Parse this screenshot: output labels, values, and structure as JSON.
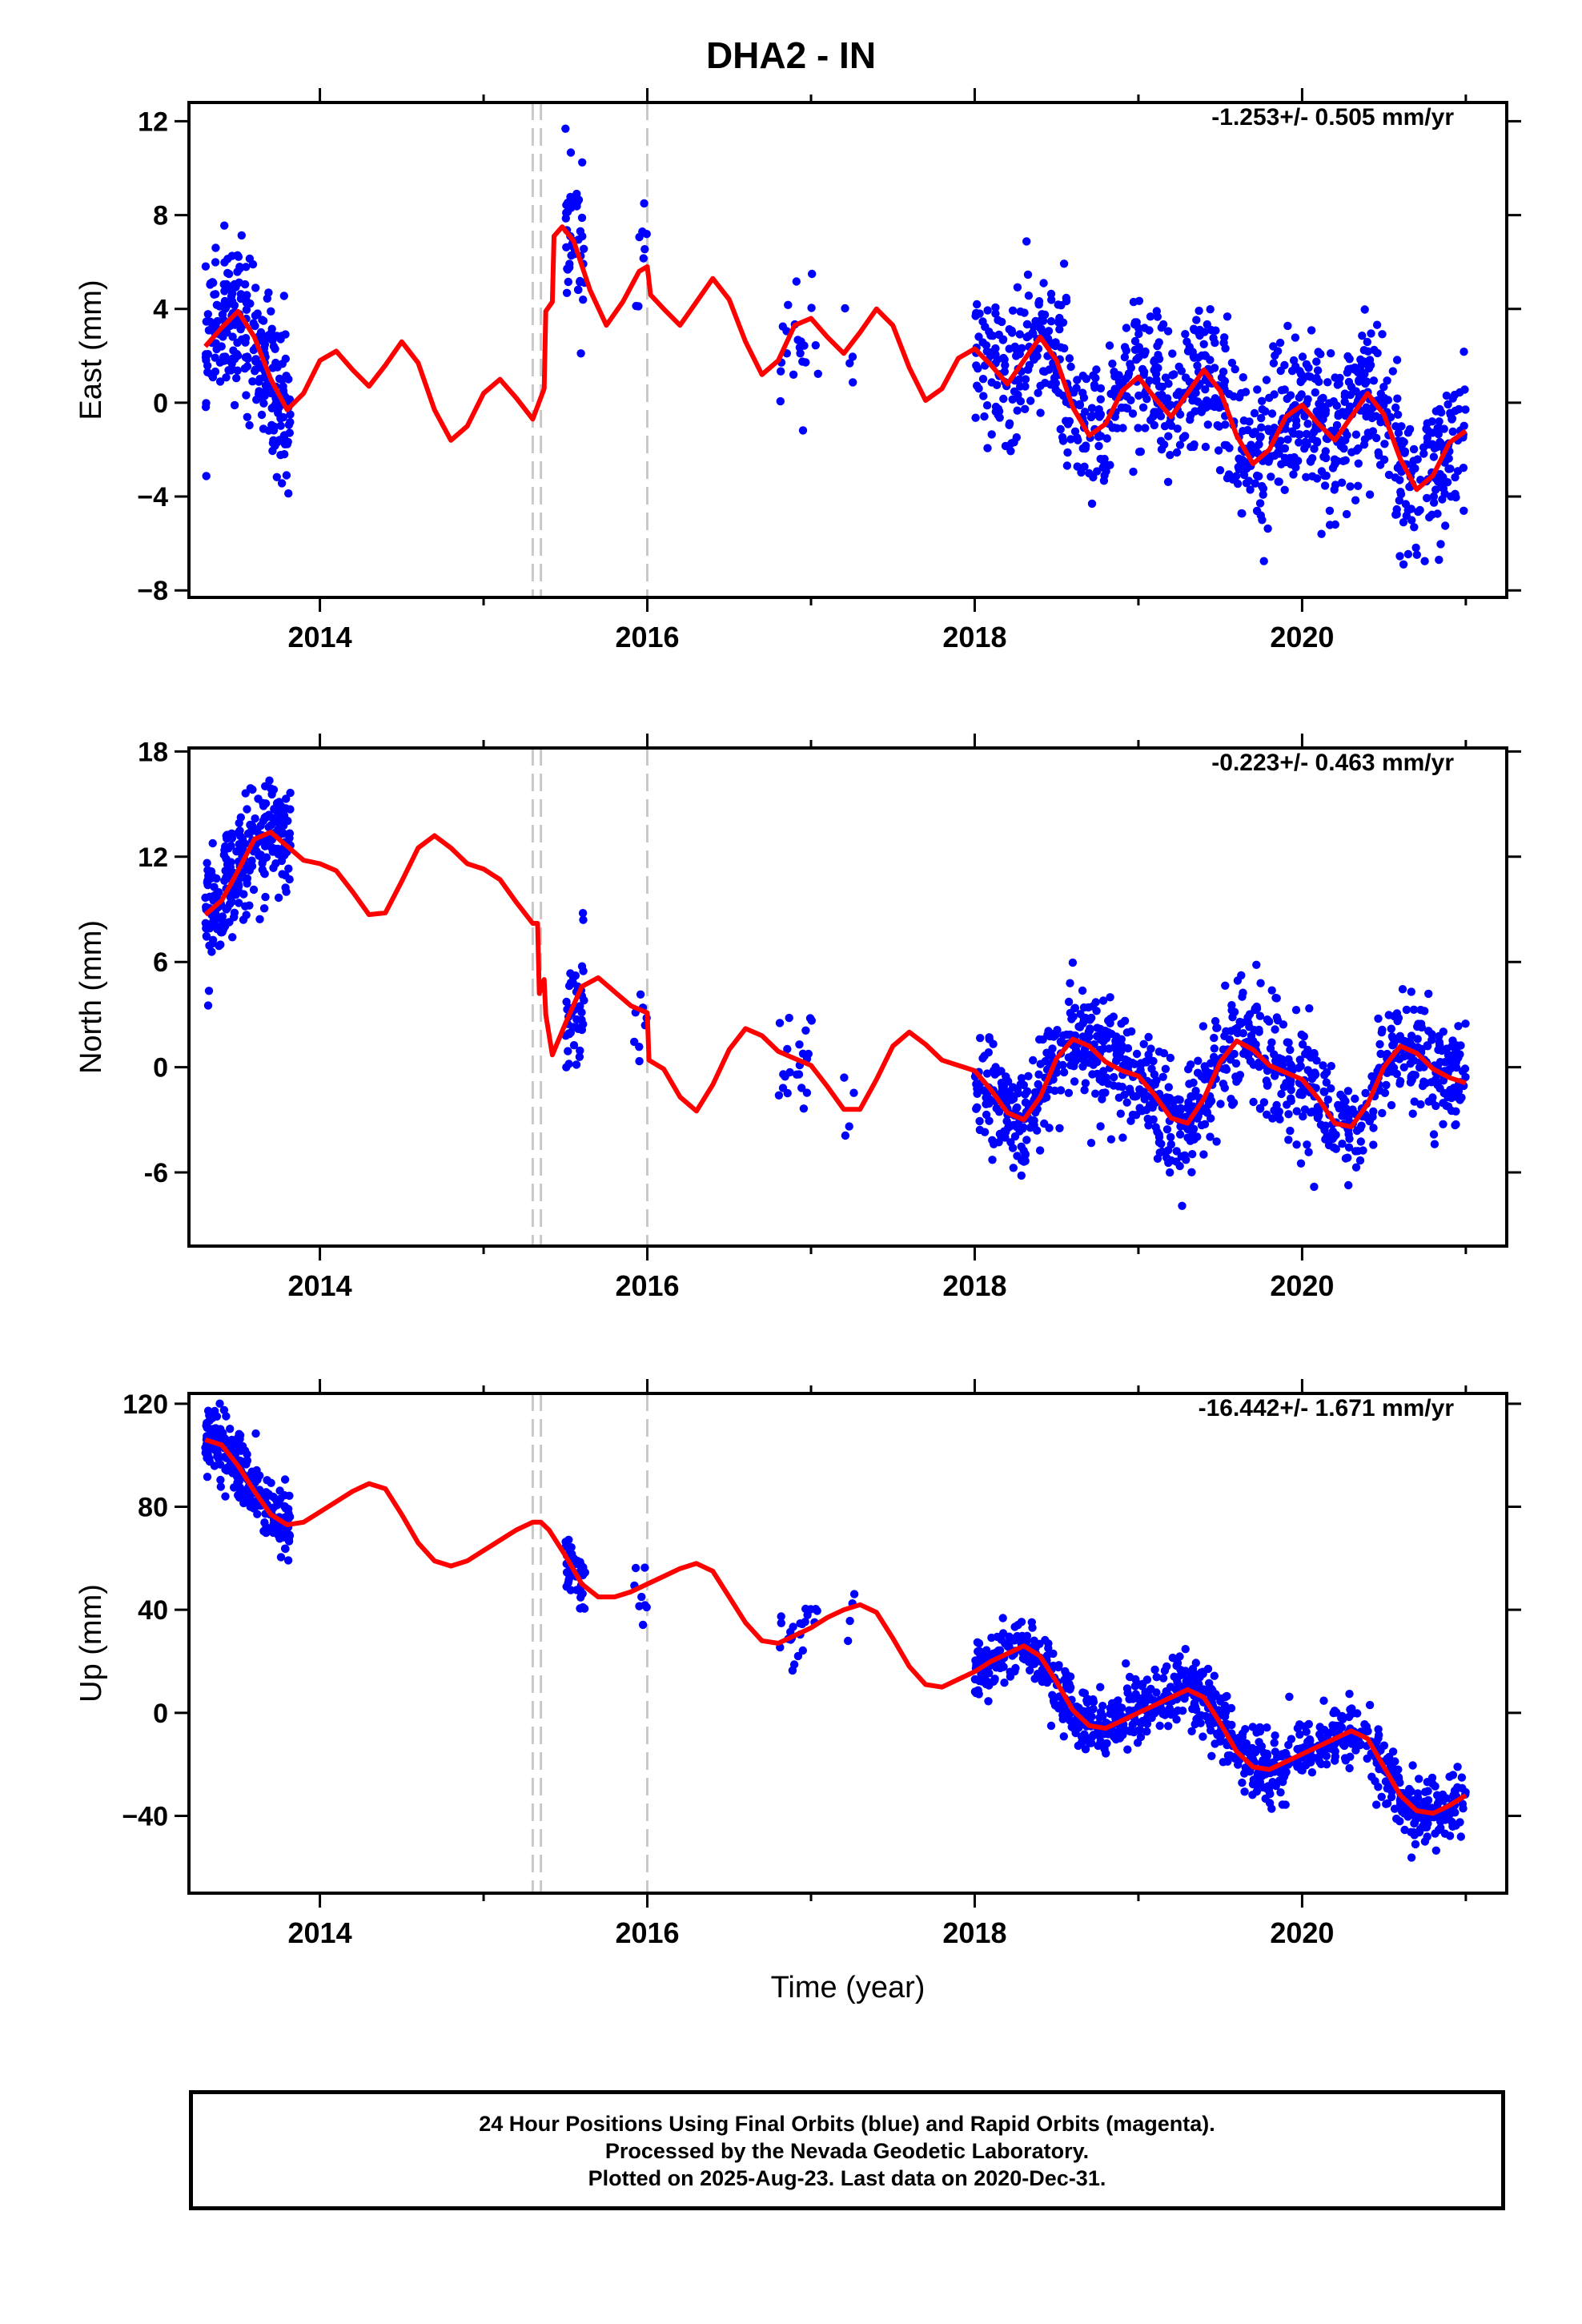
{
  "title": "DHA2 - IN",
  "footer": {
    "line1": "24 Hour Positions Using Final Orbits (blue) and Rapid Orbits (magenta).",
    "line2": "Processed by the Nevada Geodetic Laboratory.",
    "line3": "Plotted on 2025-Aug-23. Last data on 2020-Dec-31."
  },
  "colors": {
    "data": "#0000ff",
    "fit": "#ff0000",
    "breaks": "#c8c8c8"
  },
  "chart_data": [
    {
      "type": "scatter",
      "component": "east",
      "ylabel": "East (mm)",
      "xlabel": "",
      "rate_label": "-1.253+/- 0.505 mm/yr",
      "xlim": [
        2013.2,
        2021.25
      ],
      "ylim": [
        -8.3,
        12.8
      ],
      "yticks": [
        -8,
        -4,
        0,
        4,
        8,
        12
      ],
      "ytick_labels": [
        "−8",
        "−4",
        "0",
        "4",
        "8",
        "12"
      ],
      "xticks": [
        2014,
        2016,
        2018,
        2020
      ],
      "xtick_labels": [
        "2014",
        "2016",
        "2018",
        "2020"
      ],
      "breaks": [
        2015.3,
        2015.35,
        2016.0
      ],
      "fit_line": [
        [
          2013.3,
          2.4
        ],
        [
          2013.4,
          3.2
        ],
        [
          2013.5,
          3.9
        ],
        [
          2013.6,
          2.8
        ],
        [
          2013.7,
          1.0
        ],
        [
          2013.8,
          -0.3
        ],
        [
          2013.9,
          0.4
        ],
        [
          2014.0,
          1.8
        ],
        [
          2014.1,
          2.2
        ],
        [
          2014.2,
          1.4
        ],
        [
          2014.3,
          0.7
        ],
        [
          2014.4,
          1.6
        ],
        [
          2014.5,
          2.6
        ],
        [
          2014.6,
          1.7
        ],
        [
          2014.7,
          -0.3
        ],
        [
          2014.8,
          -1.6
        ],
        [
          2014.9,
          -1.0
        ],
        [
          2015.0,
          0.4
        ],
        [
          2015.1,
          1.0
        ],
        [
          2015.2,
          0.2
        ],
        [
          2015.3,
          -0.7
        ],
        [
          2015.37,
          0.6
        ],
        [
          2015.38,
          3.9
        ],
        [
          2015.42,
          4.3
        ],
        [
          2015.43,
          7.1
        ],
        [
          2015.48,
          7.5
        ],
        [
          2015.55,
          6.9
        ],
        [
          2015.65,
          4.8
        ],
        [
          2015.75,
          3.3
        ],
        [
          2015.85,
          4.3
        ],
        [
          2015.95,
          5.6
        ],
        [
          2016.0,
          5.8
        ],
        [
          2016.02,
          4.6
        ],
        [
          2016.1,
          4.0
        ],
        [
          2016.2,
          3.3
        ],
        [
          2016.3,
          4.3
        ],
        [
          2016.4,
          5.3
        ],
        [
          2016.5,
          4.4
        ],
        [
          2016.6,
          2.6
        ],
        [
          2016.7,
          1.2
        ],
        [
          2016.8,
          1.8
        ],
        [
          2016.9,
          3.3
        ],
        [
          2017.0,
          3.6
        ],
        [
          2017.1,
          2.8
        ],
        [
          2017.2,
          2.1
        ],
        [
          2017.3,
          3.0
        ],
        [
          2017.4,
          4.0
        ],
        [
          2017.5,
          3.3
        ],
        [
          2017.6,
          1.5
        ],
        [
          2017.7,
          0.1
        ],
        [
          2017.8,
          0.6
        ],
        [
          2017.9,
          1.9
        ],
        [
          2018.0,
          2.3
        ],
        [
          2018.1,
          1.6
        ],
        [
          2018.2,
          0.8
        ],
        [
          2018.3,
          1.8
        ],
        [
          2018.4,
          2.8
        ],
        [
          2018.5,
          1.8
        ],
        [
          2018.6,
          -0.2
        ],
        [
          2018.7,
          -1.4
        ],
        [
          2018.8,
          -0.9
        ],
        [
          2018.9,
          0.5
        ],
        [
          2019.0,
          1.1
        ],
        [
          2019.1,
          0.2
        ],
        [
          2019.2,
          -0.6
        ],
        [
          2019.3,
          0.4
        ],
        [
          2019.4,
          1.4
        ],
        [
          2019.5,
          0.5
        ],
        [
          2019.6,
          -1.4
        ],
        [
          2019.7,
          -2.6
        ],
        [
          2019.8,
          -2.0
        ],
        [
          2019.9,
          -0.6
        ],
        [
          2020.0,
          -0.1
        ],
        [
          2020.1,
          -0.9
        ],
        [
          2020.2,
          -1.6
        ],
        [
          2020.3,
          -0.6
        ],
        [
          2020.4,
          0.4
        ],
        [
          2020.5,
          -0.5
        ],
        [
          2020.6,
          -2.4
        ],
        [
          2020.7,
          -3.7
        ],
        [
          2020.8,
          -3.1
        ],
        [
          2020.9,
          -1.7
        ],
        [
          2021.0,
          -1.2
        ]
      ]
    },
    {
      "type": "scatter",
      "component": "north",
      "ylabel": "North (mm)",
      "xlabel": "",
      "rate_label": "-0.223+/- 0.463 mm/yr",
      "xlim": [
        2013.2,
        2021.25
      ],
      "ylim": [
        -10.2,
        18.2
      ],
      "yticks": [
        -6,
        0,
        6,
        12,
        18
      ],
      "ytick_labels": [
        "-6",
        "0",
        "6",
        "12",
        "18"
      ],
      "xticks": [
        2014,
        2016,
        2018,
        2020
      ],
      "xtick_labels": [
        "2014",
        "2016",
        "2018",
        "2020"
      ],
      "breaks": [
        2015.3,
        2015.35,
        2016.0
      ],
      "fit_line": [
        [
          2013.3,
          8.7
        ],
        [
          2013.4,
          9.5
        ],
        [
          2013.5,
          11.2
        ],
        [
          2013.6,
          13.0
        ],
        [
          2013.7,
          13.4
        ],
        [
          2013.8,
          12.6
        ],
        [
          2013.9,
          11.8
        ],
        [
          2014.0,
          11.6
        ],
        [
          2014.1,
          11.2
        ],
        [
          2014.2,
          10.0
        ],
        [
          2014.3,
          8.7
        ],
        [
          2014.4,
          8.8
        ],
        [
          2014.5,
          10.6
        ],
        [
          2014.6,
          12.5
        ],
        [
          2014.7,
          13.2
        ],
        [
          2014.8,
          12.5
        ],
        [
          2014.9,
          11.6
        ],
        [
          2015.0,
          11.3
        ],
        [
          2015.1,
          10.7
        ],
        [
          2015.2,
          9.4
        ],
        [
          2015.3,
          8.2
        ],
        [
          2015.33,
          8.2
        ],
        [
          2015.34,
          4.2
        ],
        [
          2015.37,
          5.0
        ],
        [
          2015.38,
          3.0
        ],
        [
          2015.42,
          0.7
        ],
        [
          2015.5,
          2.5
        ],
        [
          2015.6,
          4.6
        ],
        [
          2015.7,
          5.1
        ],
        [
          2015.8,
          4.3
        ],
        [
          2015.9,
          3.5
        ],
        [
          2016.0,
          3.1
        ],
        [
          2016.01,
          0.4
        ],
        [
          2016.1,
          -0.1
        ],
        [
          2016.2,
          -1.7
        ],
        [
          2016.3,
          -2.5
        ],
        [
          2016.4,
          -1.0
        ],
        [
          2016.5,
          1.0
        ],
        [
          2016.6,
          2.2
        ],
        [
          2016.7,
          1.8
        ],
        [
          2016.8,
          0.9
        ],
        [
          2016.9,
          0.5
        ],
        [
          2017.0,
          0.1
        ],
        [
          2017.1,
          -1.1
        ],
        [
          2017.2,
          -2.4
        ],
        [
          2017.3,
          -2.4
        ],
        [
          2017.4,
          -0.7
        ],
        [
          2017.5,
          1.2
        ],
        [
          2017.6,
          2.0
        ],
        [
          2017.7,
          1.3
        ],
        [
          2017.8,
          0.4
        ],
        [
          2017.9,
          0.1
        ],
        [
          2018.0,
          -0.2
        ],
        [
          2018.1,
          -1.3
        ],
        [
          2018.2,
          -2.6
        ],
        [
          2018.3,
          -3.0
        ],
        [
          2018.4,
          -1.7
        ],
        [
          2018.5,
          0.5
        ],
        [
          2018.6,
          1.6
        ],
        [
          2018.7,
          1.2
        ],
        [
          2018.8,
          0.3
        ],
        [
          2018.9,
          -0.2
        ],
        [
          2019.0,
          -0.5
        ],
        [
          2019.1,
          -1.6
        ],
        [
          2019.2,
          -2.9
        ],
        [
          2019.3,
          -3.2
        ],
        [
          2019.4,
          -1.8
        ],
        [
          2019.5,
          0.3
        ],
        [
          2019.6,
          1.5
        ],
        [
          2019.7,
          1.0
        ],
        [
          2019.8,
          0.1
        ],
        [
          2019.9,
          -0.3
        ],
        [
          2020.0,
          -0.7
        ],
        [
          2020.1,
          -1.8
        ],
        [
          2020.2,
          -3.2
        ],
        [
          2020.3,
          -3.4
        ],
        [
          2020.4,
          -2.1
        ],
        [
          2020.5,
          0.0
        ],
        [
          2020.6,
          1.2
        ],
        [
          2020.7,
          0.8
        ],
        [
          2020.8,
          -0.1
        ],
        [
          2020.9,
          -0.6
        ],
        [
          2021.0,
          -0.9
        ]
      ]
    },
    {
      "type": "scatter",
      "component": "up",
      "ylabel": "Up (mm)",
      "xlabel": "Time (year)",
      "rate_label": "-16.442+/- 1.671 mm/yr",
      "xlim": [
        2013.2,
        2021.25
      ],
      "ylim": [
        -70,
        124
      ],
      "yticks": [
        -40,
        0,
        40,
        80,
        120
      ],
      "ytick_labels": [
        "−40",
        "0",
        "40",
        "80",
        "120"
      ],
      "xticks": [
        2014,
        2016,
        2018,
        2020
      ],
      "xtick_labels": [
        "2014",
        "2016",
        "2018",
        "2020"
      ],
      "breaks": [
        2015.3,
        2015.35,
        2016.0
      ],
      "fit_line": [
        [
          2013.3,
          106
        ],
        [
          2013.4,
          104
        ],
        [
          2013.5,
          96
        ],
        [
          2013.6,
          86
        ],
        [
          2013.7,
          77
        ],
        [
          2013.8,
          73
        ],
        [
          2013.9,
          74
        ],
        [
          2014.0,
          78
        ],
        [
          2014.1,
          82
        ],
        [
          2014.2,
          86
        ],
        [
          2014.3,
          89
        ],
        [
          2014.4,
          87
        ],
        [
          2014.5,
          77
        ],
        [
          2014.6,
          66
        ],
        [
          2014.7,
          59
        ],
        [
          2014.8,
          57
        ],
        [
          2014.9,
          59
        ],
        [
          2015.0,
          63
        ],
        [
          2015.1,
          67
        ],
        [
          2015.2,
          71
        ],
        [
          2015.3,
          74
        ],
        [
          2015.35,
          74
        ],
        [
          2015.4,
          71
        ],
        [
          2015.5,
          61
        ],
        [
          2015.6,
          50
        ],
        [
          2015.7,
          45
        ],
        [
          2015.8,
          45
        ],
        [
          2015.9,
          47
        ],
        [
          2016.0,
          50
        ],
        [
          2016.1,
          53
        ],
        [
          2016.2,
          56
        ],
        [
          2016.3,
          58
        ],
        [
          2016.4,
          55
        ],
        [
          2016.5,
          45
        ],
        [
          2016.6,
          35
        ],
        [
          2016.7,
          28
        ],
        [
          2016.8,
          27
        ],
        [
          2016.9,
          30
        ],
        [
          2017.0,
          33
        ],
        [
          2017.1,
          37
        ],
        [
          2017.2,
          40
        ],
        [
          2017.3,
          42
        ],
        [
          2017.4,
          39
        ],
        [
          2017.5,
          29
        ],
        [
          2017.6,
          18
        ],
        [
          2017.7,
          11
        ],
        [
          2017.8,
          10
        ],
        [
          2017.9,
          13
        ],
        [
          2018.0,
          16
        ],
        [
          2018.1,
          20
        ],
        [
          2018.2,
          23
        ],
        [
          2018.3,
          26
        ],
        [
          2018.4,
          22
        ],
        [
          2018.5,
          12
        ],
        [
          2018.6,
          1
        ],
        [
          2018.7,
          -5
        ],
        [
          2018.8,
          -6
        ],
        [
          2018.9,
          -3
        ],
        [
          2019.0,
          0
        ],
        [
          2019.1,
          3
        ],
        [
          2019.2,
          6
        ],
        [
          2019.3,
          9
        ],
        [
          2019.4,
          6
        ],
        [
          2019.5,
          -4
        ],
        [
          2019.6,
          -15
        ],
        [
          2019.7,
          -21
        ],
        [
          2019.8,
          -22
        ],
        [
          2019.9,
          -19
        ],
        [
          2020.0,
          -16
        ],
        [
          2020.1,
          -13
        ],
        [
          2020.2,
          -10
        ],
        [
          2020.3,
          -7
        ],
        [
          2020.4,
          -10
        ],
        [
          2020.5,
          -21
        ],
        [
          2020.6,
          -32
        ],
        [
          2020.7,
          -38
        ],
        [
          2020.8,
          -39
        ],
        [
          2020.9,
          -36
        ],
        [
          2021.0,
          -32
        ]
      ]
    }
  ]
}
